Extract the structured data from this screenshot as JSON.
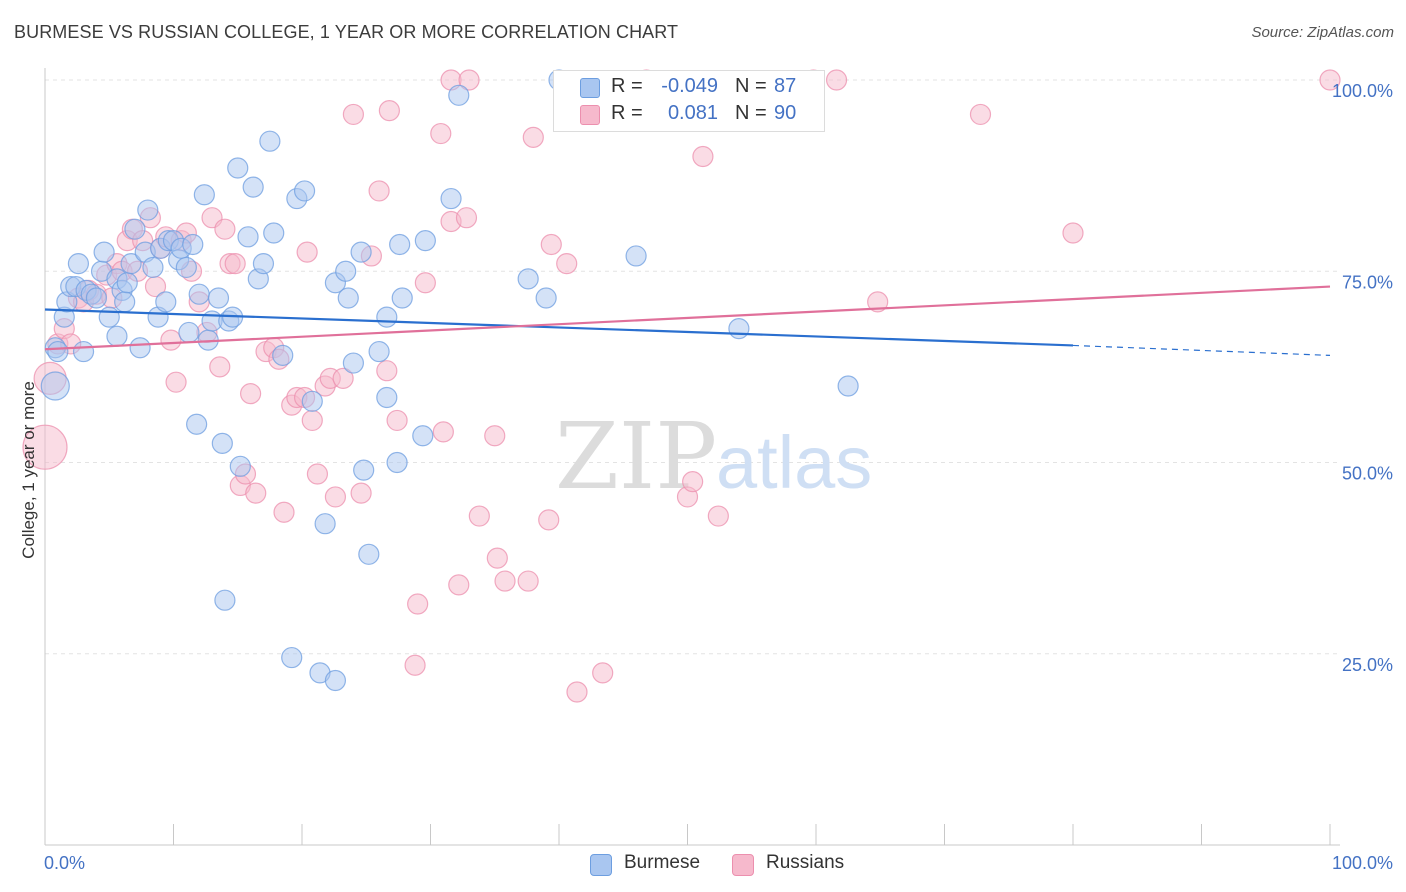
{
  "title": "BURMESE VS RUSSIAN COLLEGE, 1 YEAR OR MORE CORRELATION CHART",
  "source": "Source: ZipAtlas.com",
  "watermark": {
    "zip": "ZIP",
    "atlas": "atlas"
  },
  "legend_top": [
    {
      "r_label": "R =",
      "r_value": "-0.049",
      "n_label": "N =",
      "n_value": "87"
    },
    {
      "r_label": "R =",
      "r_value": "0.081",
      "n_label": "N =",
      "n_value": "90"
    }
  ],
  "legend_bottom": [
    "Burmese",
    "Russians"
  ],
  "colors": {
    "burmese_fill": "#a9c6f0",
    "burmese_stroke": "#6d9ee0",
    "burmese_line": "#2a6fcf",
    "russian_fill": "#f6b9cc",
    "russian_stroke": "#ec8fae",
    "russian_line": "#e0709a",
    "tick_text": "#4472c4",
    "grid": "#e3e3e3"
  },
  "chart_data": {
    "type": "scatter",
    "title": "BURMESE VS RUSSIAN COLLEGE, 1 YEAR OR MORE CORRELATION CHART",
    "xlabel": "",
    "ylabel": "College, 1 year or more",
    "xlim": [
      0,
      100
    ],
    "ylim": [
      0,
      100
    ],
    "x_tick_labels": [
      "0.0%",
      "100.0%"
    ],
    "y_tick_labels": [
      "25.0%",
      "50.0%",
      "75.0%",
      "100.0%"
    ],
    "y_ticks": [
      25,
      50,
      75,
      100
    ],
    "x_minor_ticks": [
      0,
      10,
      20,
      30,
      40,
      50,
      60,
      70,
      80,
      90,
      100
    ],
    "grid": true,
    "legend": "top-center",
    "series": [
      {
        "name": "Burmese",
        "r": -0.049,
        "n": 87,
        "trend": {
          "x0": 0,
          "y0": 70.0,
          "x1": 80,
          "y1": 65.3,
          "dashed_to_x": 100,
          "dashed_to_y": 64.0
        },
        "points": [
          [
            0.8,
            65.0,
            10
          ],
          [
            0.8,
            60.0,
            14
          ],
          [
            1.0,
            64.5,
            10
          ],
          [
            1.5,
            69.0,
            10
          ],
          [
            1.7,
            71.0,
            10
          ],
          [
            2.0,
            73.0,
            10
          ],
          [
            2.4,
            73.0,
            10
          ],
          [
            2.6,
            76.0,
            10
          ],
          [
            3.0,
            64.5,
            10
          ],
          [
            3.2,
            72.5,
            10
          ],
          [
            3.6,
            72.0,
            10
          ],
          [
            4.0,
            71.5,
            10
          ],
          [
            4.4,
            75.0,
            10
          ],
          [
            4.6,
            77.5,
            10
          ],
          [
            5.0,
            69.0,
            10
          ],
          [
            5.6,
            74.0,
            10
          ],
          [
            5.6,
            66.5,
            10
          ],
          [
            6.0,
            72.5,
            10
          ],
          [
            6.2,
            71.0,
            10
          ],
          [
            6.4,
            73.5,
            10
          ],
          [
            6.7,
            76.0,
            10
          ],
          [
            7.0,
            80.5,
            10
          ],
          [
            7.4,
            65.0,
            10
          ],
          [
            7.8,
            77.5,
            10
          ],
          [
            8.0,
            83.0,
            10
          ],
          [
            8.4,
            75.5,
            10
          ],
          [
            8.8,
            69.0,
            10
          ],
          [
            9.0,
            78.0,
            10
          ],
          [
            9.4,
            71.0,
            10
          ],
          [
            9.6,
            79.0,
            10
          ],
          [
            10.0,
            79.0,
            10
          ],
          [
            10.4,
            76.5,
            10
          ],
          [
            10.6,
            78.0,
            10
          ],
          [
            11.0,
            75.5,
            10
          ],
          [
            11.2,
            67.0,
            10
          ],
          [
            11.5,
            78.5,
            10
          ],
          [
            11.8,
            55.0,
            10
          ],
          [
            12.0,
            72.0,
            10
          ],
          [
            12.4,
            85.0,
            10
          ],
          [
            12.7,
            66.0,
            10
          ],
          [
            13.0,
            68.5,
            10
          ],
          [
            13.5,
            71.5,
            10
          ],
          [
            13.8,
            52.5,
            10
          ],
          [
            14.0,
            32.0,
            10
          ],
          [
            14.3,
            68.5,
            10
          ],
          [
            14.6,
            69.0,
            10
          ],
          [
            15.0,
            88.5,
            10
          ],
          [
            15.2,
            49.5,
            10
          ],
          [
            15.8,
            79.5,
            10
          ],
          [
            16.2,
            86.0,
            10
          ],
          [
            16.6,
            74.0,
            10
          ],
          [
            17.0,
            76.0,
            10
          ],
          [
            17.5,
            92.0,
            10
          ],
          [
            17.8,
            80.0,
            10
          ],
          [
            18.5,
            64.0,
            10
          ],
          [
            19.2,
            24.5,
            10
          ],
          [
            19.6,
            84.5,
            10
          ],
          [
            20.2,
            85.5,
            10
          ],
          [
            20.8,
            58.0,
            10
          ],
          [
            21.4,
            22.5,
            10
          ],
          [
            21.8,
            42.0,
            10
          ],
          [
            22.6,
            73.5,
            10
          ],
          [
            22.6,
            21.5,
            10
          ],
          [
            23.4,
            75.0,
            10
          ],
          [
            23.6,
            71.5,
            10
          ],
          [
            24.0,
            63.0,
            10
          ],
          [
            24.6,
            77.5,
            10
          ],
          [
            24.8,
            49.0,
            10
          ],
          [
            25.2,
            38.0,
            10
          ],
          [
            26.0,
            64.5,
            10
          ],
          [
            26.6,
            58.5,
            10
          ],
          [
            26.6,
            69.0,
            10
          ],
          [
            27.4,
            50.0,
            10
          ],
          [
            27.6,
            78.5,
            10
          ],
          [
            27.8,
            71.5,
            10
          ],
          [
            29.4,
            53.5,
            10
          ],
          [
            29.6,
            79.0,
            10
          ],
          [
            31.6,
            84.5,
            10
          ],
          [
            32.2,
            98.0,
            10
          ],
          [
            37.6,
            74.0,
            10
          ],
          [
            39.0,
            71.5,
            10
          ],
          [
            40.0,
            100.0,
            10
          ],
          [
            46.0,
            77.0,
            10
          ],
          [
            54.0,
            67.5,
            10
          ],
          [
            62.5,
            60.0,
            10
          ]
        ]
      },
      {
        "name": "Russians",
        "r": 0.081,
        "n": 90,
        "trend": {
          "x0": 0,
          "y0": 64.8,
          "x1": 100,
          "y1": 73.0
        },
        "points": [
          [
            0.0,
            52.0,
            22
          ],
          [
            0.4,
            61.0,
            16
          ],
          [
            1.0,
            65.5,
            10
          ],
          [
            1.5,
            67.5,
            10
          ],
          [
            2.0,
            65.5,
            10
          ],
          [
            2.6,
            71.5,
            10
          ],
          [
            3.0,
            71.0,
            10
          ],
          [
            3.4,
            72.5,
            10
          ],
          [
            4.0,
            72.0,
            10
          ],
          [
            4.8,
            74.5,
            10
          ],
          [
            5.2,
            71.5,
            10
          ],
          [
            5.6,
            76.0,
            10
          ],
          [
            6.0,
            75.0,
            10
          ],
          [
            6.4,
            79.0,
            10
          ],
          [
            6.8,
            80.5,
            10
          ],
          [
            7.2,
            75.0,
            10
          ],
          [
            7.6,
            79.0,
            10
          ],
          [
            8.2,
            82.0,
            10
          ],
          [
            8.6,
            73.0,
            10
          ],
          [
            9.0,
            78.0,
            10
          ],
          [
            9.4,
            79.5,
            10
          ],
          [
            9.8,
            66.0,
            10
          ],
          [
            10.2,
            60.5,
            10
          ],
          [
            10.6,
            79.0,
            10
          ],
          [
            11.0,
            80.0,
            10
          ],
          [
            11.4,
            75.0,
            10
          ],
          [
            12.0,
            71.0,
            10
          ],
          [
            12.6,
            67.0,
            10
          ],
          [
            13.0,
            82.0,
            10
          ],
          [
            13.6,
            62.5,
            10
          ],
          [
            14.0,
            80.5,
            10
          ],
          [
            14.4,
            76.0,
            10
          ],
          [
            14.8,
            76.0,
            10
          ],
          [
            15.2,
            47.0,
            10
          ],
          [
            15.6,
            48.5,
            10
          ],
          [
            16.0,
            59.0,
            10
          ],
          [
            16.4,
            46.0,
            10
          ],
          [
            17.2,
            64.5,
            10
          ],
          [
            17.8,
            65.0,
            10
          ],
          [
            18.2,
            63.5,
            10
          ],
          [
            18.6,
            43.5,
            10
          ],
          [
            19.2,
            57.5,
            10
          ],
          [
            19.6,
            58.5,
            10
          ],
          [
            20.2,
            58.5,
            10
          ],
          [
            20.4,
            77.5,
            10
          ],
          [
            20.8,
            55.5,
            10
          ],
          [
            21.2,
            48.5,
            10
          ],
          [
            21.8,
            60.0,
            10
          ],
          [
            22.2,
            61.0,
            10
          ],
          [
            22.6,
            45.5,
            10
          ],
          [
            23.2,
            61.0,
            10
          ],
          [
            24.0,
            95.5,
            10
          ],
          [
            24.6,
            46.0,
            10
          ],
          [
            25.4,
            77.0,
            10
          ],
          [
            26.0,
            85.5,
            10
          ],
          [
            26.6,
            62.0,
            10
          ],
          [
            26.8,
            96.0,
            10
          ],
          [
            27.4,
            55.5,
            10
          ],
          [
            28.8,
            23.5,
            10
          ],
          [
            29.0,
            31.5,
            10
          ],
          [
            29.6,
            73.5,
            10
          ],
          [
            30.8,
            93.0,
            10
          ],
          [
            31.0,
            54.0,
            10
          ],
          [
            31.6,
            81.5,
            10
          ],
          [
            31.6,
            100.0,
            10
          ],
          [
            32.2,
            34.0,
            10
          ],
          [
            32.8,
            82.0,
            10
          ],
          [
            33.0,
            100.0,
            10
          ],
          [
            33.8,
            43.0,
            10
          ],
          [
            35.0,
            53.5,
            10
          ],
          [
            35.2,
            37.5,
            10
          ],
          [
            35.8,
            34.5,
            10
          ],
          [
            37.6,
            34.5,
            10
          ],
          [
            38.0,
            92.5,
            10
          ],
          [
            39.2,
            42.5,
            10
          ],
          [
            39.4,
            78.5,
            10
          ],
          [
            40.6,
            76.0,
            10
          ],
          [
            41.4,
            20.0,
            10
          ],
          [
            43.4,
            22.5,
            10
          ],
          [
            46.8,
            100.0,
            10
          ],
          [
            50.0,
            45.5,
            10
          ],
          [
            50.4,
            47.5,
            10
          ],
          [
            51.2,
            90.0,
            10
          ],
          [
            52.4,
            43.0,
            10
          ],
          [
            59.8,
            100.0,
            10
          ],
          [
            61.6,
            100.0,
            10
          ],
          [
            64.8,
            71.0,
            10
          ],
          [
            72.8,
            95.5,
            10
          ],
          [
            80.0,
            80.0,
            10
          ],
          [
            100.0,
            100.0,
            10
          ]
        ]
      }
    ]
  }
}
